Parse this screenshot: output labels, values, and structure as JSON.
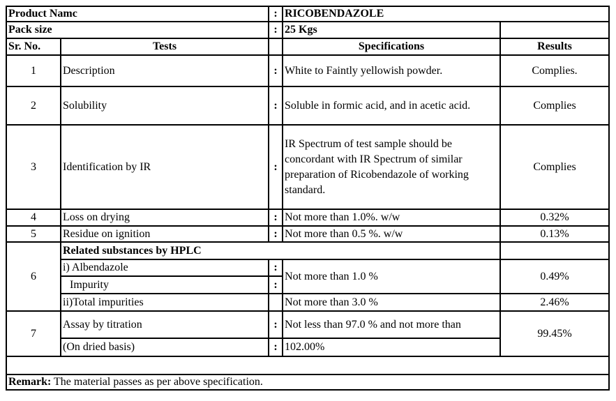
{
  "header": {
    "product_label": "Product Namc",
    "product_value": "RICOBENDAZOLE",
    "pack_label": "Pack size",
    "pack_value": "25 Kgs",
    "separator": ":"
  },
  "columns": {
    "sr": "Sr. No.",
    "tests": "Tests",
    "specs": "Specifications",
    "results": "Results"
  },
  "rows": [
    {
      "sr": "1",
      "test": "Description",
      "spec": "White to Faintly yellowish powder.",
      "result": "Complies."
    },
    {
      "sr": "2",
      "test": "Solubility",
      "spec": "Soluble in formic acid, and in acetic acid.",
      "result": "Complies"
    },
    {
      "sr": "3",
      "test": "Identification by IR",
      "spec": "IR Spectrum of test sample should be concordant with IR Spectrum of similar preparation of Ricobendazole of working standard.",
      "result": "Complies"
    },
    {
      "sr": "4",
      "test": "Loss on drying",
      "spec": "Not more than 1.0%. w/w",
      "result": "0.32%"
    },
    {
      "sr": "5",
      "test": "Residue on ignition",
      "spec": "Not more than 0.5 %. w/w",
      "result": "0.13%"
    }
  ],
  "row6": {
    "sr": "6",
    "title": "Related substances by HPLC",
    "sub1_line1": "i) Albendazole",
    "sub1_line2": "Impurity",
    "sub1_spec": "Not more than 1.0 %",
    "sub1_result": "0.49%",
    "sub2": "ii)Total impurities",
    "sub2_spec": "Not more than 3.0 %",
    "sub2_result": "2.46%"
  },
  "row7": {
    "sr": "7",
    "test_line1": "Assay by titration",
    "test_line2": "(On dried basis)",
    "spec_line1": "Not less than 97.0 % and not more than",
    "spec_line2": "102.00%",
    "result": "99.45%"
  },
  "remark": {
    "label": "Remark:",
    "text": " The material passes as per above specification."
  }
}
